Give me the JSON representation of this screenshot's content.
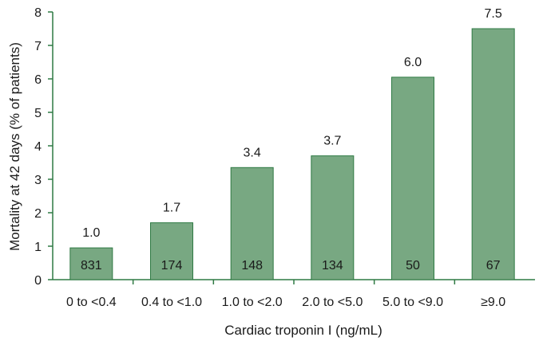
{
  "chart_data": {
    "type": "bar",
    "categories": [
      "0 to <0.4",
      "0.4 to <1.0",
      "1.0 to <2.0",
      "2.0 to <5.0",
      "5.0 to <9.0",
      "≥9.0"
    ],
    "values": [
      0.95,
      1.7,
      3.35,
      3.7,
      6.05,
      7.5
    ],
    "value_labels": [
      "1.0",
      "1.7",
      "3.4",
      "3.7",
      "6.0",
      "7.5"
    ],
    "counts": [
      "831",
      "174",
      "148",
      "134",
      "50",
      "67"
    ],
    "xlabel": "Cardiac troponin I (ng/mL)",
    "ylabel": "Mortality at 42 days (% of patients)",
    "ylim": [
      0,
      8
    ],
    "yticks": [
      "0",
      "1",
      "2",
      "3",
      "4",
      "5",
      "6",
      "7",
      "8"
    ],
    "grid": false,
    "colors": {
      "bar_fill": "#78a882",
      "bar_stroke": "#2f7a44",
      "axis": "#2f7a44"
    }
  }
}
